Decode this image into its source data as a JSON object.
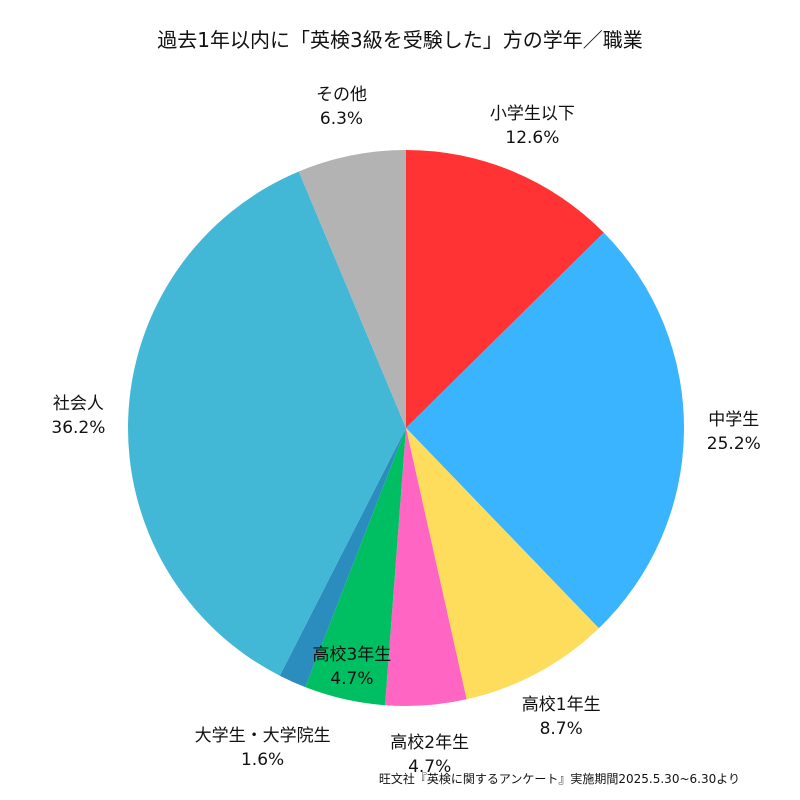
{
  "chart_data": {
    "type": "pie",
    "title": "過去1年以内に「英検3級を受験した」方の学年／職業",
    "start_angle_deg": 90,
    "direction": "clockwise",
    "slices": [
      {
        "label": "小学生以下",
        "value": 12.6,
        "value_text": "12.6%",
        "color": "#FF3333"
      },
      {
        "label": "中学生",
        "value": 25.2,
        "value_text": "25.2%",
        "color": "#3BB4FF"
      },
      {
        "label": "高校1年生",
        "value": 8.7,
        "value_text": "8.7%",
        "color": "#FFDD5C"
      },
      {
        "label": "高校2年生",
        "value": 4.7,
        "value_text": "4.7%",
        "color": "#FF66C4"
      },
      {
        "label": "高校3年生",
        "value": 4.7,
        "value_text": "4.7%",
        "color": "#00BF63"
      },
      {
        "label": "大学生・大学院生",
        "value": 1.6,
        "value_text": "1.6%",
        "color": "#2B8CBE"
      },
      {
        "label": "社会人",
        "value": 36.2,
        "value_text": "36.2%",
        "color": "#42B7D6"
      },
      {
        "label": "その他",
        "value": 6.3,
        "value_text": "6.3%",
        "color": "#B3B3B3"
      }
    ],
    "source": "旺文社『英検に関するアンケート』実施期間2025.5.30~6.30より"
  }
}
